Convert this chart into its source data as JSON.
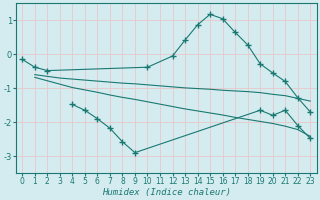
{
  "xlabel": "Humidex (Indice chaleur)",
  "xlim": [
    -0.5,
    23.5
  ],
  "ylim": [
    -3.5,
    1.5
  ],
  "yticks": [
    -3,
    -2,
    -1,
    0,
    1
  ],
  "xticks": [
    0,
    1,
    2,
    3,
    4,
    5,
    6,
    7,
    8,
    9,
    10,
    11,
    12,
    13,
    14,
    15,
    16,
    17,
    18,
    19,
    20,
    21,
    22,
    23
  ],
  "background_color": "#d4ecf0",
  "grid_color": "#c8dde0",
  "line_color": "#1a7872",
  "line1_x": [
    0,
    1,
    2,
    10,
    12,
    13,
    14,
    15,
    16,
    17,
    18,
    19,
    20,
    21,
    22,
    23
  ],
  "line1_y": [
    -0.15,
    -0.38,
    -0.48,
    -0.38,
    -0.05,
    0.42,
    0.87,
    1.18,
    1.05,
    0.65,
    0.28,
    -0.28,
    -0.55,
    -0.8,
    -1.28,
    -1.7
  ],
  "line2_x": [
    1,
    2,
    3,
    4,
    5,
    6,
    7,
    8,
    9,
    10,
    11,
    12,
    13,
    14,
    15,
    16,
    17,
    18,
    19,
    20,
    21,
    22,
    23
  ],
  "line2_y": [
    -0.6,
    -0.65,
    -0.7,
    -0.73,
    -0.76,
    -0.79,
    -0.82,
    -0.85,
    -0.87,
    -0.9,
    -0.93,
    -0.96,
    -0.99,
    -1.01,
    -1.03,
    -1.06,
    -1.08,
    -1.1,
    -1.13,
    -1.18,
    -1.22,
    -1.3,
    -1.38
  ],
  "line3_x": [
    1,
    2,
    3,
    4,
    5,
    6,
    7,
    8,
    9,
    10,
    11,
    12,
    13,
    14,
    15,
    16,
    17,
    18,
    19,
    20,
    21,
    22,
    23
  ],
  "line3_y": [
    -0.68,
    -0.78,
    -0.88,
    -0.98,
    -1.05,
    -1.12,
    -1.2,
    -1.27,
    -1.33,
    -1.4,
    -1.47,
    -1.54,
    -1.61,
    -1.67,
    -1.73,
    -1.79,
    -1.86,
    -1.92,
    -1.98,
    -2.04,
    -2.12,
    -2.22,
    -2.42
  ],
  "line4_x": [
    4,
    5,
    6,
    7,
    8,
    9,
    19,
    20,
    21,
    22,
    23
  ],
  "line4_y": [
    -1.48,
    -1.65,
    -1.9,
    -2.18,
    -2.58,
    -2.9,
    -1.65,
    -1.8,
    -1.65,
    -2.1,
    -2.48
  ]
}
